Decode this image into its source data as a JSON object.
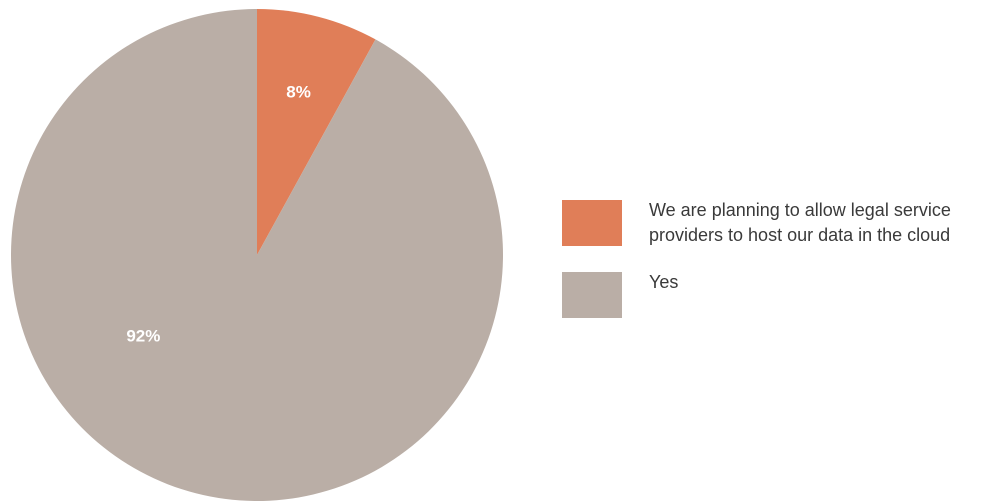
{
  "chart_data": {
    "type": "pie",
    "title": "",
    "slices": [
      {
        "label": "We are planning to allow legal service providers to host our data in the cloud",
        "value": 8,
        "display": "8%",
        "color": "#E07E58"
      },
      {
        "label": "Yes",
        "value": 92,
        "display": "92%",
        "color": "#BAAEA6"
      }
    ],
    "legend_position": "right"
  }
}
